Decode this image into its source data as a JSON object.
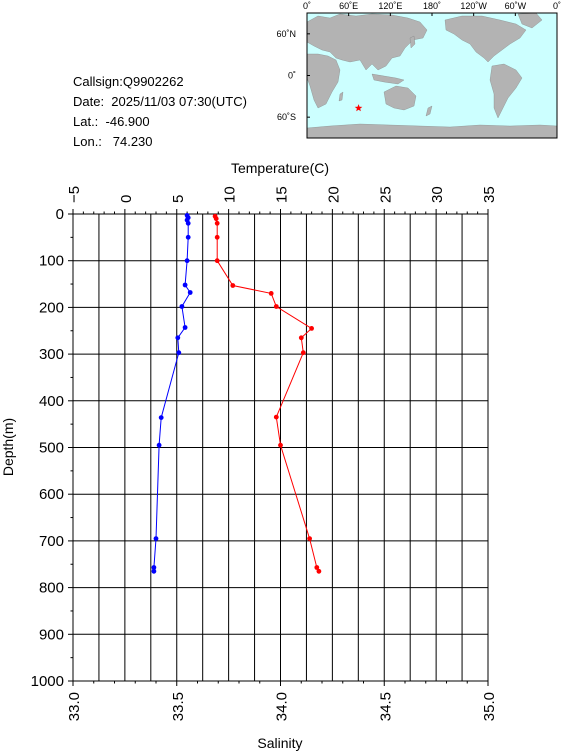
{
  "info": {
    "callsign": "Callsign:Q9902262",
    "date": "Date:  2025/11/03 07:30(UTC)",
    "lat": "Lat.:  -46.900",
    "lon": "Lon.:   74.230"
  },
  "map": {
    "top_labels": [
      "0˚",
      "60˚E",
      "120˚E",
      "180˚",
      "120˚W",
      "60˚W",
      "0˚"
    ],
    "side_labels": [
      "60˚N",
      "0˚",
      "60˚S"
    ],
    "ocean_color": "#ccffff",
    "land_color": "#b3b3b3",
    "marker_color": "#ff0000",
    "marker": {
      "lon": 74.23,
      "lat": -46.9
    }
  },
  "chart_data": {
    "type": "line",
    "ylabel": "Depth(m)",
    "temperature_axis": {
      "label": "Temperature(C)",
      "range": [
        -5,
        35
      ],
      "ticks": [
        "−5",
        "0",
        "5",
        "10",
        "15",
        "20",
        "25",
        "30",
        "35"
      ]
    },
    "salinity_axis": {
      "label": "Salinity",
      "range": [
        33.0,
        35.0
      ],
      "ticks": [
        "33.0",
        "33.5",
        "34.0",
        "34.5",
        "35.0"
      ]
    },
    "depth_axis": {
      "range": [
        0,
        1000
      ],
      "ticks": [
        "0",
        "100",
        "200",
        "300",
        "400",
        "500",
        "600",
        "700",
        "800",
        "900",
        "1000"
      ]
    },
    "grid": true,
    "series": [
      {
        "color": "#ff0000",
        "axis": "salinity",
        "points": [
          [
            33.685,
            5
          ],
          [
            33.69,
            10
          ],
          [
            33.695,
            20
          ],
          [
            33.695,
            50
          ],
          [
            33.695,
            100
          ],
          [
            33.77,
            153
          ],
          [
            33.955,
            170
          ],
          [
            33.98,
            198
          ],
          [
            34.15,
            245
          ],
          [
            34.1,
            265
          ],
          [
            34.11,
            297
          ],
          [
            33.98,
            435
          ],
          [
            34.0,
            495
          ],
          [
            34.14,
            695
          ],
          [
            34.175,
            757
          ],
          [
            34.185,
            765
          ]
        ]
      },
      {
        "color": "#0000ff",
        "axis": "temperature",
        "points": [
          [
            6.0,
            3
          ],
          [
            6.1,
            8
          ],
          [
            6.0,
            13
          ],
          [
            6.1,
            20
          ],
          [
            6.1,
            50
          ],
          [
            6.0,
            100
          ],
          [
            5.8,
            152
          ],
          [
            6.3,
            168
          ],
          [
            5.5,
            198
          ],
          [
            5.8,
            243
          ],
          [
            5.1,
            265
          ],
          [
            5.2,
            297
          ],
          [
            3.5,
            436
          ],
          [
            3.3,
            495
          ],
          [
            3.0,
            695
          ],
          [
            2.8,
            757
          ],
          [
            2.8,
            765
          ]
        ]
      }
    ]
  }
}
